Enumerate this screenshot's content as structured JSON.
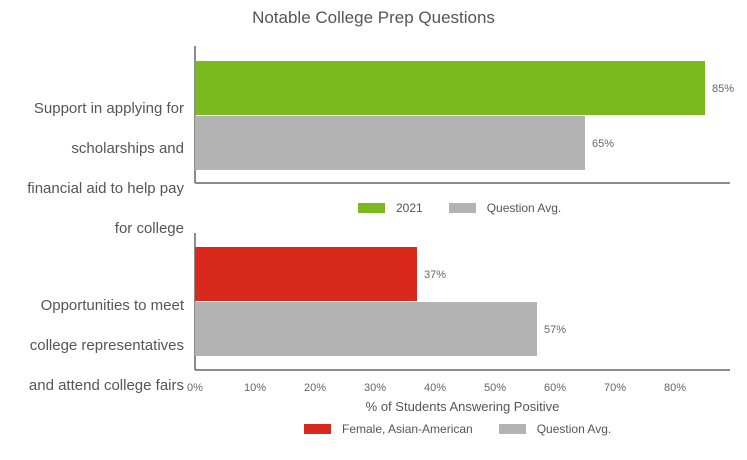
{
  "chart_data": [
    {
      "type": "bar",
      "orientation": "horizontal",
      "title": "Notable College Prep Questions",
      "categories": [
        "Support in applying for scholarships and financial aid to help pay for college"
      ],
      "category_lines": [
        "Support in applying for",
        "scholarships and",
        "financial aid to help pay",
        "for college"
      ],
      "series": [
        {
          "name": "2021",
          "values": [
            85
          ],
          "labels": [
            "85%"
          ],
          "color": "#7aba1f"
        },
        {
          "name": "Question Avg.",
          "values": [
            65
          ],
          "labels": [
            "65%"
          ],
          "color": "#b3b3b3"
        }
      ],
      "xlim": [
        0,
        90
      ],
      "grid": false,
      "legend_position": "bottom"
    },
    {
      "type": "bar",
      "orientation": "horizontal",
      "categories": [
        "Opportunities to meet college representatives and attend college fairs"
      ],
      "category_lines": [
        "Opportunities to meet",
        "college representatives",
        "and attend college fairs"
      ],
      "series": [
        {
          "name": "Female, Asian-American",
          "values": [
            37
          ],
          "labels": [
            "37%"
          ],
          "color": "#d9291c"
        },
        {
          "name": "Question Avg.",
          "values": [
            57
          ],
          "labels": [
            "57%"
          ],
          "color": "#b3b3b3"
        }
      ],
      "xlim": [
        0,
        90
      ],
      "xticks": [
        "0%",
        "10%",
        "20%",
        "30%",
        "40%",
        "50%",
        "60%",
        "70%",
        "80%"
      ],
      "xlabel": "% of Students Answering Positive",
      "grid": false,
      "legend_position": "bottom"
    }
  ]
}
